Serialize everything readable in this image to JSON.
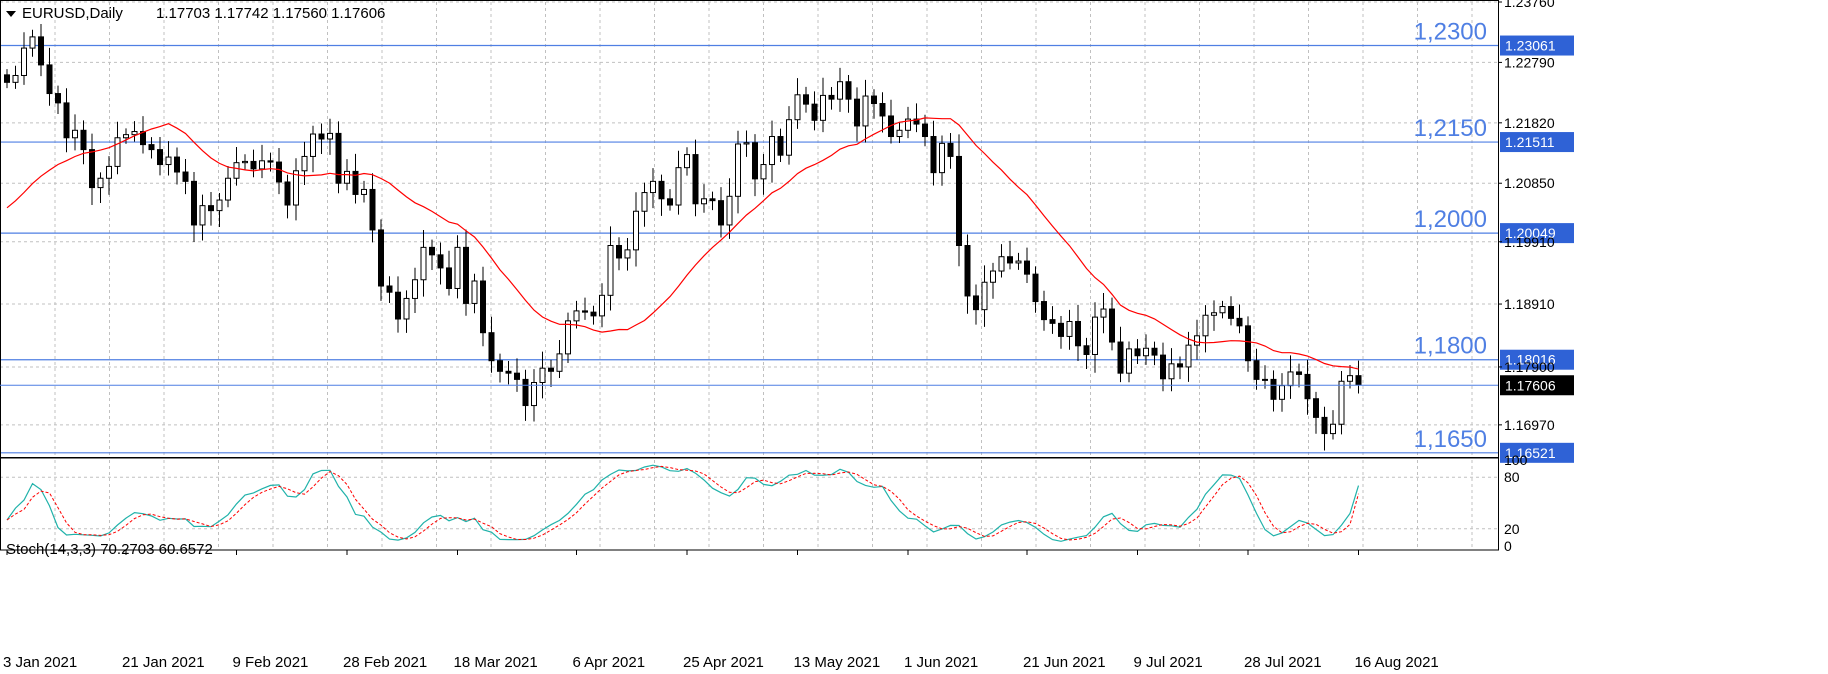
{
  "header": {
    "symbol": "EURUSD,Daily",
    "ohlc": "1.17703 1.17742 1.17560 1.17606"
  },
  "stoch_header": "Stoch(14,3,3) 70.2703 60.6572",
  "colors": {
    "background": "#ffffff",
    "grid": "#c0c0c0",
    "level_line": "#4f7fe3",
    "level_label_bg": "#2f62d6",
    "ma": "#ff0000",
    "stoch_main": "#20b2aa",
    "stoch_signal": "#ff0000",
    "candle": "#000000"
  },
  "price_axis": {
    "ticks": [
      "1.23760",
      "1.22790",
      "1.21820",
      "1.20850",
      "1.19910",
      "1.18910",
      "1.17900",
      "1.16970"
    ],
    "current": "1.17606"
  },
  "levels": [
    {
      "value": 1.23061,
      "label": "1.23061",
      "big_label": "1,2300"
    },
    {
      "value": 1.21511,
      "label": "1.21511",
      "big_label": "1,2150"
    },
    {
      "value": 1.20049,
      "label": "1.20049",
      "big_label": "1,2000"
    },
    {
      "value": 1.18016,
      "label": "1.18016",
      "big_label": "1,1800"
    },
    {
      "value": 1.16521,
      "label": "1.16521",
      "big_label": "1,1650"
    }
  ],
  "stoch_axis": {
    "ticks": [
      "100",
      "80",
      "20",
      "0"
    ]
  },
  "time_axis": {
    "labels": [
      {
        "text": "3 Jan 2021",
        "bar": 0
      },
      {
        "text": "21 Jan 2021",
        "bar": 14
      },
      {
        "text": "9 Feb 2021",
        "bar": 27
      },
      {
        "text": "28 Feb 2021",
        "bar": 40
      },
      {
        "text": "18 Mar 2021",
        "bar": 53
      },
      {
        "text": "6 Apr 2021",
        "bar": 67
      },
      {
        "text": "25 Apr 2021",
        "bar": 80
      },
      {
        "text": "13 May 2021",
        "bar": 93
      },
      {
        "text": "1 Jun 2021",
        "bar": 106
      },
      {
        "text": "21 Jun 2021",
        "bar": 120
      },
      {
        "text": "9 Jul 2021",
        "bar": 133
      },
      {
        "text": "28 Jul 2021",
        "bar": 146
      },
      {
        "text": "16 Aug 2021",
        "bar": 159
      }
    ]
  },
  "chart_data": {
    "type": "candlestick",
    "symbol": "EURUSD",
    "timeframe": "Daily",
    "ylim": [
      1.1647,
      1.2376
    ],
    "close_series": [
      1.2247,
      1.2258,
      1.2302,
      1.232,
      1.2275,
      1.2229,
      1.2214,
      1.2158,
      1.217,
      1.2139,
      1.2078,
      1.2093,
      1.2112,
      1.2158,
      1.2163,
      1.2168,
      1.2147,
      1.2139,
      1.2115,
      1.2127,
      1.2103,
      1.2088,
      1.2018,
      1.2049,
      1.2041,
      1.2058,
      1.2093,
      1.2118,
      1.212,
      1.2108,
      1.2121,
      1.2119,
      1.2087,
      1.205,
      1.2105,
      1.2128,
      1.2164,
      1.2156,
      1.2165,
      1.2085,
      1.2104,
      1.2067,
      1.2075,
      1.201,
      1.192,
      1.191,
      1.1867,
      1.19,
      1.193,
      1.1982,
      1.197,
      1.1949,
      1.1916,
      1.1982,
      1.1892,
      1.1928,
      1.1845,
      1.18,
      1.1783,
      1.178,
      1.177,
      1.1728,
      1.1765,
      1.1788,
      1.1783,
      1.1811,
      1.1864,
      1.188,
      1.1878,
      1.1872,
      1.1905,
      1.1985,
      1.1965,
      1.1978,
      1.204,
      1.207,
      1.2088,
      1.206,
      1.205,
      1.211,
      1.2131,
      1.2052,
      1.206,
      1.2057,
      1.2018,
      1.2064,
      1.2148,
      1.215,
      1.2092,
      1.2115,
      1.216,
      1.213,
      1.2187,
      1.2227,
      1.2212,
      1.2186,
      1.2226,
      1.222,
      1.2248,
      1.222,
      1.2177,
      1.2225,
      1.2213,
      1.2193,
      1.216,
      1.217,
      1.2188,
      1.218,
      1.216,
      1.2102,
      1.2149,
      1.2128,
      1.1985,
      1.1904,
      1.1882,
      1.1926,
      1.1944,
      1.1967,
      1.1957,
      1.196,
      1.1939,
      1.1895,
      1.1866,
      1.186,
      1.1839,
      1.1863,
      1.1824,
      1.181,
      1.187,
      1.1883,
      1.183,
      1.178,
      1.1819,
      1.1808,
      1.182,
      1.1809,
      1.1771,
      1.1795,
      1.179,
      1.1825,
      1.184,
      1.1873,
      1.1877,
      1.1887,
      1.1868,
      1.1856,
      1.18,
      1.177,
      1.177,
      1.1738,
      1.176,
      1.1782,
      1.1778,
      1.1739,
      1.1709,
      1.1683,
      1.1698,
      1.1767,
      1.1776,
      1.1761
    ],
    "moving_average": {
      "values_first_last": [
        1.2035,
        1.1801
      ]
    },
    "stochastic": {
      "params": "14,3,3",
      "main_last": 70.2703,
      "signal_last": 60.6572,
      "ylim": [
        0,
        100
      ],
      "levels": [
        20,
        80
      ]
    }
  }
}
